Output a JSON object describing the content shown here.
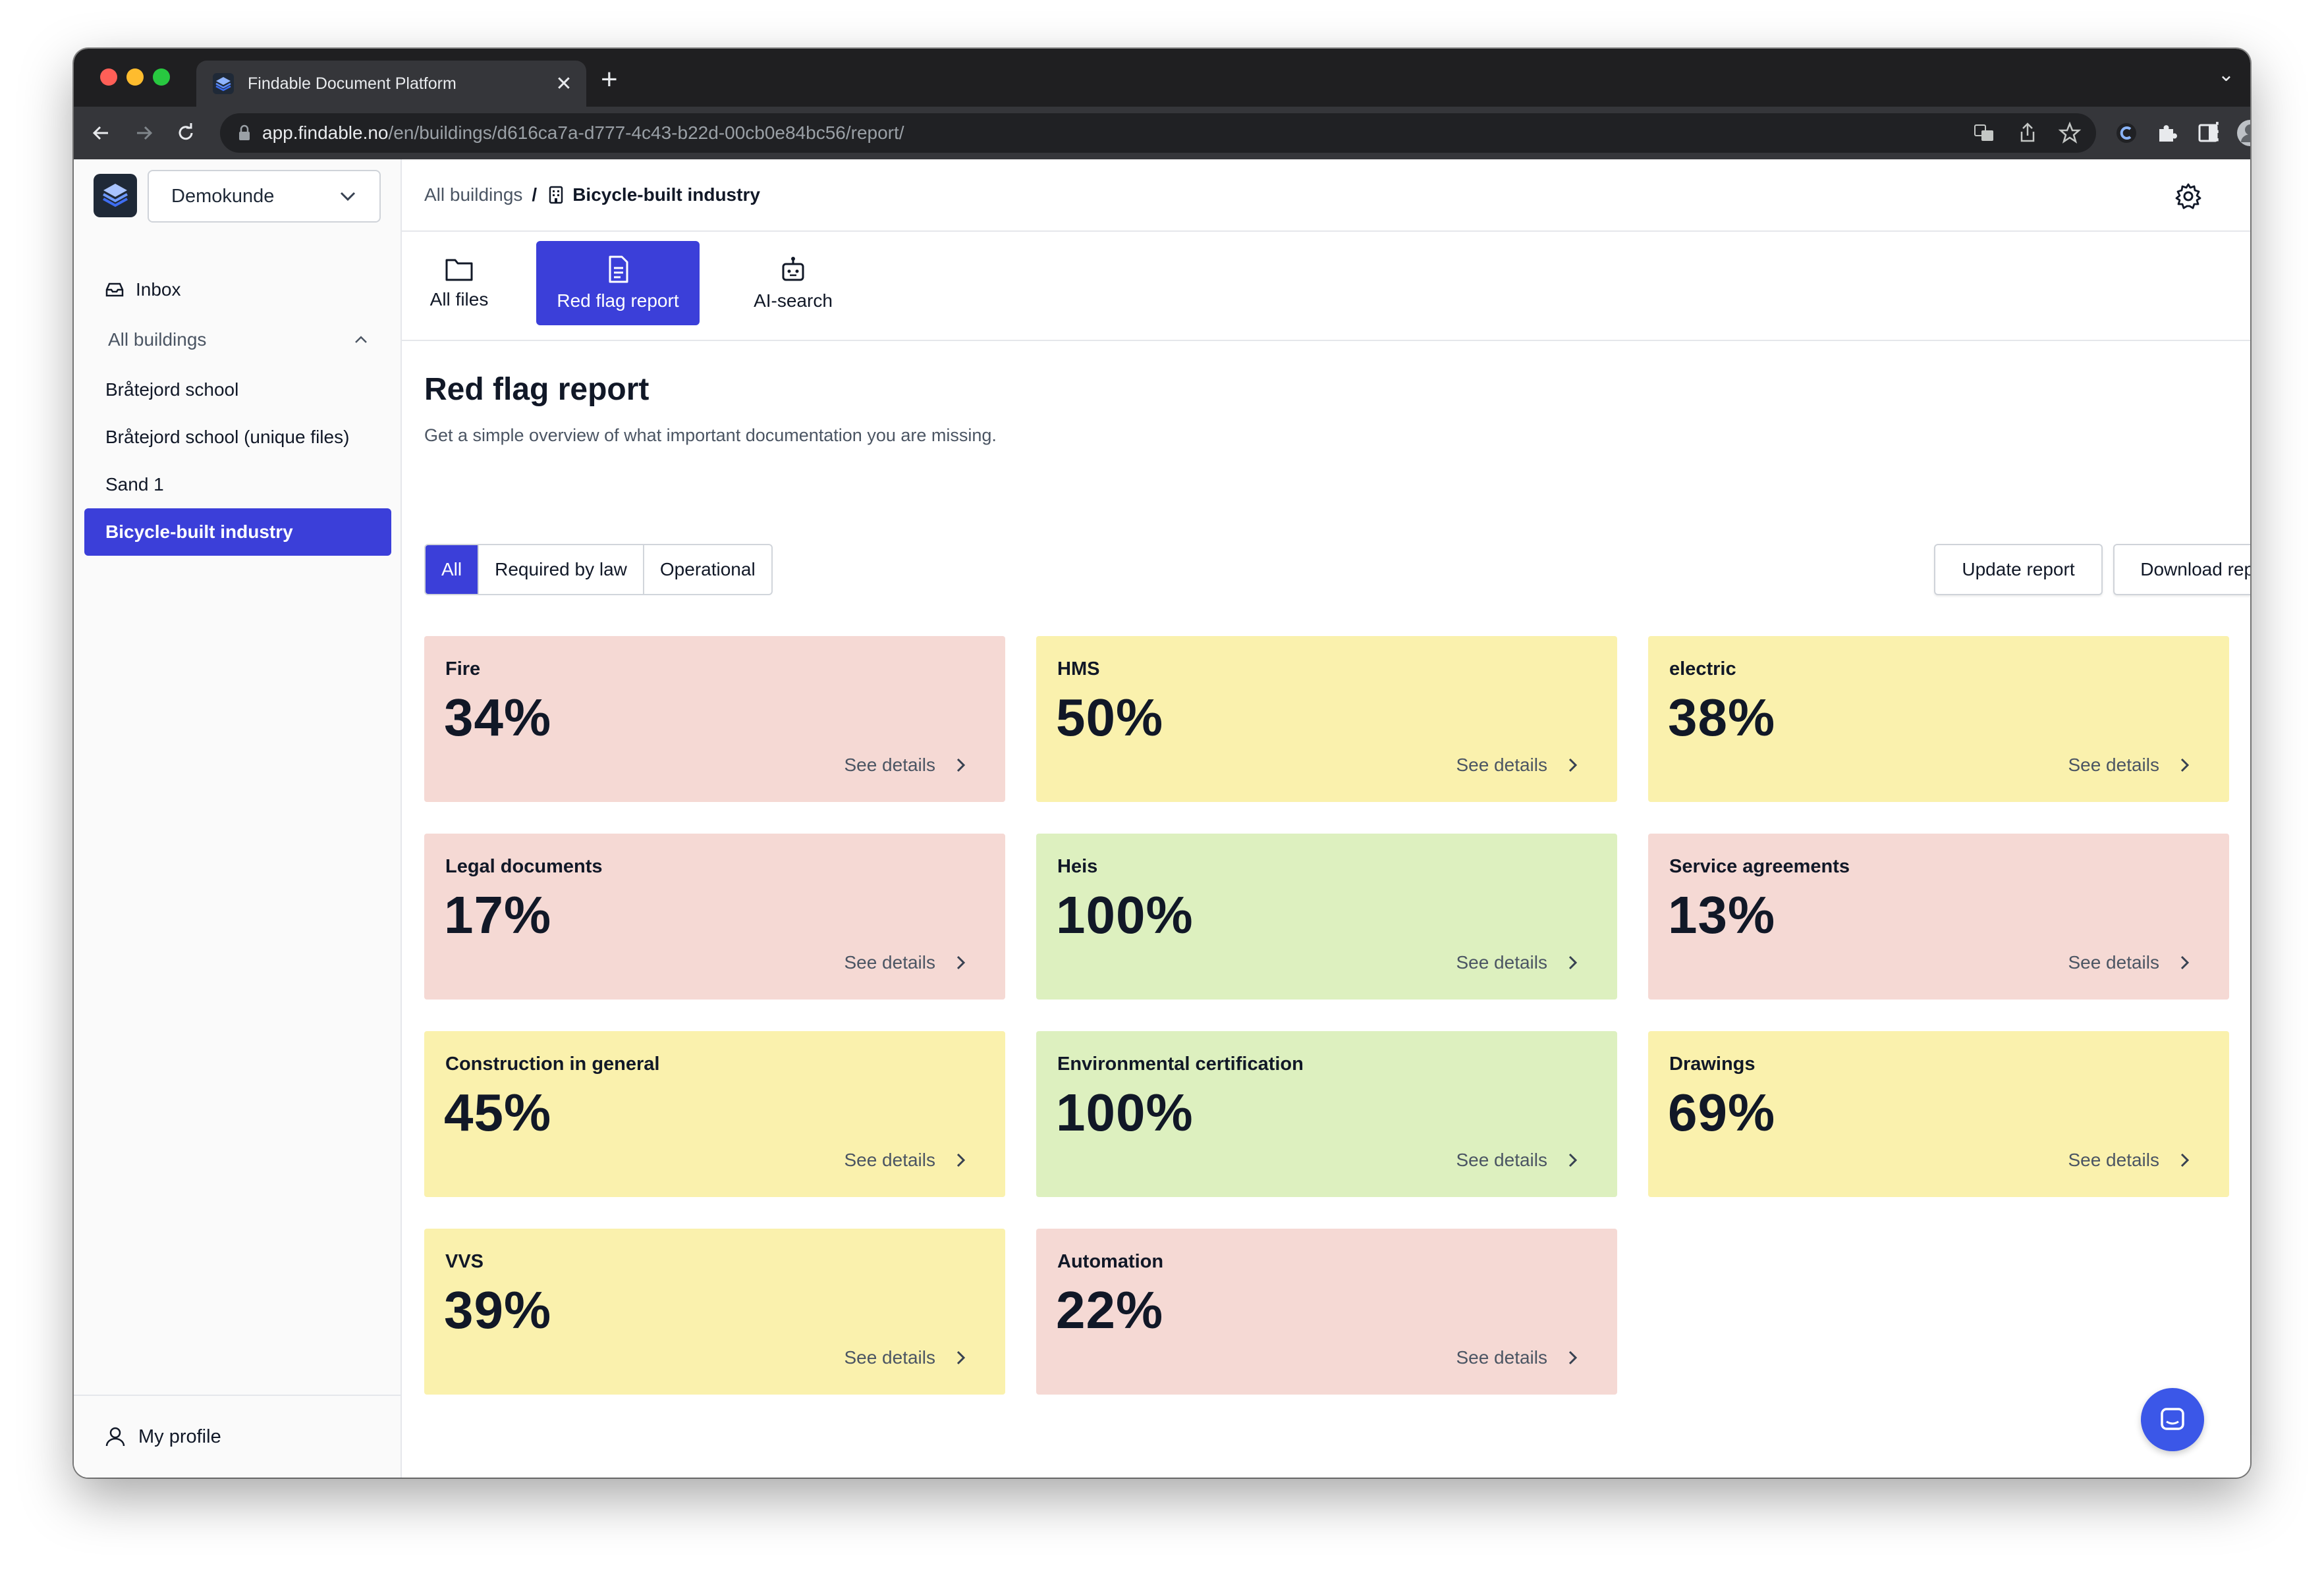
{
  "browser": {
    "tab_title": "Findable Document Platform",
    "url_host": "app.findable.no",
    "url_path": "/en/buildings/d616ca7a-d777-4c43-b22d-00cb0e84bc56/report/"
  },
  "sidebar": {
    "org_select": "Demokunde",
    "inbox": "Inbox",
    "group_label": "All buildings",
    "items": [
      {
        "label": "Bråtejord school"
      },
      {
        "label": "Bråtejord school (unique files)"
      },
      {
        "label": "Sand 1"
      },
      {
        "label": "Bicycle-built industry"
      }
    ],
    "profile": "My profile"
  },
  "breadcrumb": {
    "root": "All buildings",
    "separator": "/",
    "current": "Bicycle-built industry"
  },
  "tabs": [
    {
      "label": "All files"
    },
    {
      "label": "Red flag report"
    },
    {
      "label": "AI-search"
    }
  ],
  "report": {
    "title": "Red flag report",
    "subtitle": "Get a simple overview of what important documentation you are missing.",
    "filters": [
      "All",
      "Required by law",
      "Operational"
    ],
    "update_label": "Update report",
    "download_label": "Download report",
    "details_label": "See details",
    "cards": [
      {
        "name": "Fire",
        "percent": "34%",
        "status": "red"
      },
      {
        "name": "HMS",
        "percent": "50%",
        "status": "yellow"
      },
      {
        "name": "electric",
        "percent": "38%",
        "status": "yellow"
      },
      {
        "name": "Legal documents",
        "percent": "17%",
        "status": "red"
      },
      {
        "name": "Heis",
        "percent": "100%",
        "status": "green"
      },
      {
        "name": "Service agreements",
        "percent": "13%",
        "status": "red"
      },
      {
        "name": "Construction in general",
        "percent": "45%",
        "status": "yellow"
      },
      {
        "name": "Environmental certification",
        "percent": "100%",
        "status": "green"
      },
      {
        "name": "Drawings",
        "percent": "69%",
        "status": "yellow"
      },
      {
        "name": "VVS",
        "percent": "39%",
        "status": "yellow"
      },
      {
        "name": "Automation",
        "percent": "22%",
        "status": "red"
      }
    ]
  },
  "colors": {
    "accent": "#3b3fd9",
    "red_card": "#f5d9d4",
    "yellow_card": "#faf1ad",
    "green_card": "#ddf0bf",
    "chat_button": "#3b57e8"
  }
}
